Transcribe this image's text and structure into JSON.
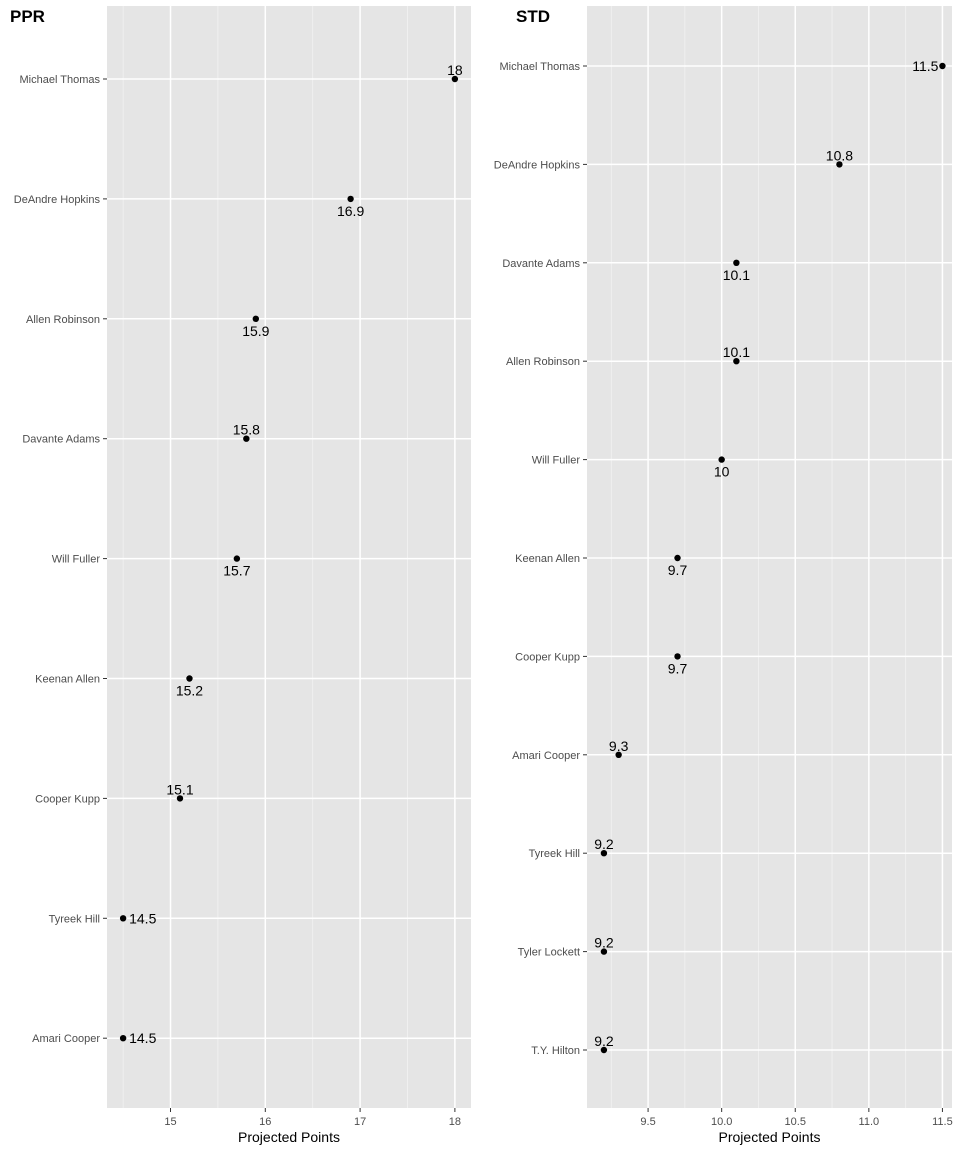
{
  "chart_data": [
    {
      "type": "scatter",
      "title": "PPR",
      "xlabel": "Projected Points",
      "ylabel": "",
      "xlim": [
        14.33,
        18.17
      ],
      "xticks": [
        15,
        16,
        17,
        18
      ],
      "grid": true,
      "categories": [
        "Michael Thomas",
        "DeAndre Hopkins",
        "Allen Robinson",
        "Davante Adams",
        "Will Fuller",
        "Keenan Allen",
        "Cooper Kupp",
        "Tyreek Hill",
        "Amari Cooper"
      ],
      "values": [
        18,
        16.9,
        15.9,
        15.8,
        15.7,
        15.2,
        15.1,
        14.5,
        14.5
      ],
      "data_labels": [
        "18",
        "16.9",
        "15.9",
        "15.8",
        "15.7",
        "15.2",
        "15.1",
        "14.5",
        "14.5"
      ]
    },
    {
      "type": "scatter",
      "title": "STD",
      "xlabel": "Projected Points",
      "ylabel": "",
      "xlim": [
        9.085,
        11.565
      ],
      "xticks": [
        9.5,
        10.0,
        10.5,
        11.0,
        11.5
      ],
      "xtick_labels": [
        "9.5",
        "10.0",
        "10.5",
        "11.0",
        "11.5"
      ],
      "grid": true,
      "categories": [
        "Michael Thomas",
        "DeAndre Hopkins",
        "Davante Adams",
        "Allen Robinson",
        "Will Fuller",
        "Keenan Allen",
        "Cooper Kupp",
        "Amari Cooper",
        "Tyreek Hill",
        "Tyler Lockett",
        "T.Y. Hilton"
      ],
      "values": [
        11.5,
        10.8,
        10.1,
        10.1,
        10,
        9.7,
        9.7,
        9.3,
        9.2,
        9.2,
        9.2
      ],
      "data_labels": [
        "11.5",
        "10.8",
        "10.1",
        "10.1",
        "10",
        "9.7",
        "9.7",
        "9.3",
        "9.2",
        "9.2",
        "9.2"
      ]
    }
  ]
}
